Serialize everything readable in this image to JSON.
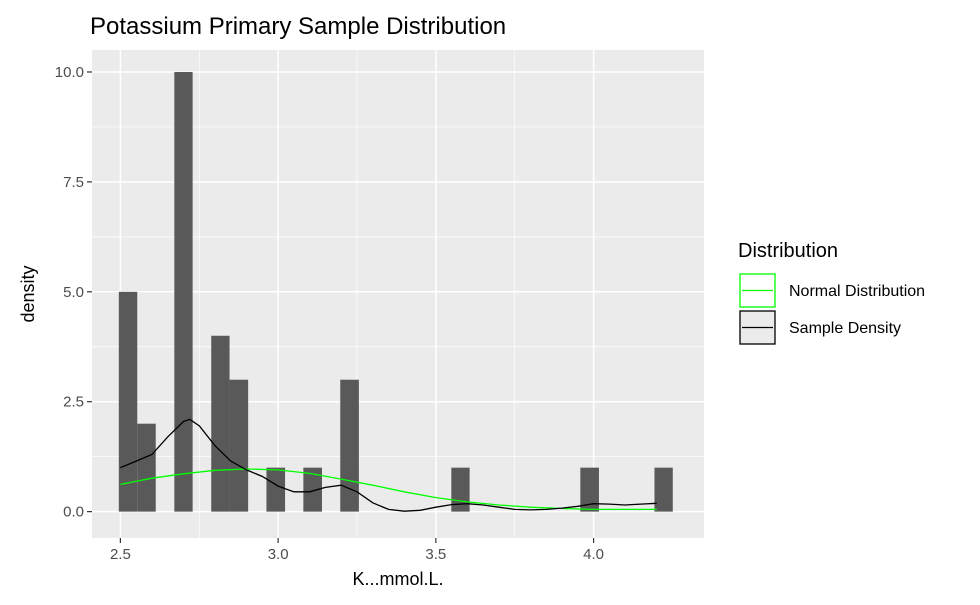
{
  "chart_data": {
    "type": "histogram",
    "title": "Potassium Primary Sample Distribution",
    "xlabel": "K...mmol.L.",
    "ylabel": "density",
    "xlim": [
      2.41,
      4.35
    ],
    "ylim": [
      -0.6,
      10.5
    ],
    "xticks": [
      2.5,
      3.0,
      3.5,
      4.0
    ],
    "xtick_labels": [
      "2.5",
      "3.0",
      "3.5",
      "4.0"
    ],
    "yticks": [
      0.0,
      2.5,
      5.0,
      7.5,
      10.0
    ],
    "ytick_labels": [
      "0.0",
      "2.5",
      "5.0",
      "7.5",
      "10.0"
    ],
    "grid": true,
    "background": "#ebebeb",
    "bar_color": "#595959",
    "bin_width": 0.0585,
    "bins": [
      {
        "x0": 2.495,
        "x1": 2.5535,
        "density": 5
      },
      {
        "x0": 2.5535,
        "x1": 2.612,
        "density": 2
      },
      {
        "x0": 2.671,
        "x1": 2.729,
        "density": 10
      },
      {
        "x0": 2.788,
        "x1": 2.846,
        "density": 4
      },
      {
        "x0": 2.846,
        "x1": 2.905,
        "density": 3
      },
      {
        "x0": 2.963,
        "x1": 3.022,
        "density": 1
      },
      {
        "x0": 3.08,
        "x1": 3.139,
        "density": 1
      },
      {
        "x0": 3.197,
        "x1": 3.256,
        "density": 3
      },
      {
        "x0": 3.549,
        "x1": 3.607,
        "density": 1
      },
      {
        "x0": 3.958,
        "x1": 4.017,
        "density": 1
      },
      {
        "x0": 4.193,
        "x1": 4.251,
        "density": 1
      }
    ],
    "series": [
      {
        "name": "Normal Distribution",
        "color": "#00ff00",
        "x": [
          2.5,
          2.6,
          2.7,
          2.8,
          2.9,
          3.0,
          3.1,
          3.2,
          3.3,
          3.4,
          3.5,
          3.6,
          3.7,
          3.8,
          3.9,
          4.0,
          4.1,
          4.2
        ],
        "y": [
          0.62,
          0.76,
          0.86,
          0.94,
          0.97,
          0.95,
          0.87,
          0.74,
          0.6,
          0.45,
          0.32,
          0.22,
          0.15,
          0.1,
          0.07,
          0.05,
          0.05,
          0.05
        ]
      },
      {
        "name": "Sample Density",
        "color": "#000000",
        "x": [
          2.5,
          2.55,
          2.6,
          2.65,
          2.7,
          2.72,
          2.75,
          2.8,
          2.85,
          2.9,
          2.95,
          3.0,
          3.05,
          3.1,
          3.15,
          3.2,
          3.25,
          3.3,
          3.35,
          3.4,
          3.45,
          3.5,
          3.55,
          3.6,
          3.65,
          3.7,
          3.75,
          3.8,
          3.85,
          3.9,
          3.95,
          4.0,
          4.05,
          4.1,
          4.15,
          4.2
        ],
        "y": [
          1.0,
          1.15,
          1.3,
          1.7,
          2.05,
          2.1,
          1.95,
          1.5,
          1.15,
          0.95,
          0.8,
          0.58,
          0.45,
          0.45,
          0.55,
          0.6,
          0.45,
          0.2,
          0.05,
          0.01,
          0.03,
          0.1,
          0.16,
          0.18,
          0.15,
          0.1,
          0.05,
          0.04,
          0.05,
          0.08,
          0.12,
          0.18,
          0.17,
          0.15,
          0.17,
          0.19
        ]
      }
    ],
    "legend": {
      "title": "Distribution",
      "placement": "right",
      "entries": [
        {
          "label": "Normal Distribution",
          "color": "#00ff00"
        },
        {
          "label": "Sample Density",
          "color": "#000000"
        }
      ]
    }
  }
}
